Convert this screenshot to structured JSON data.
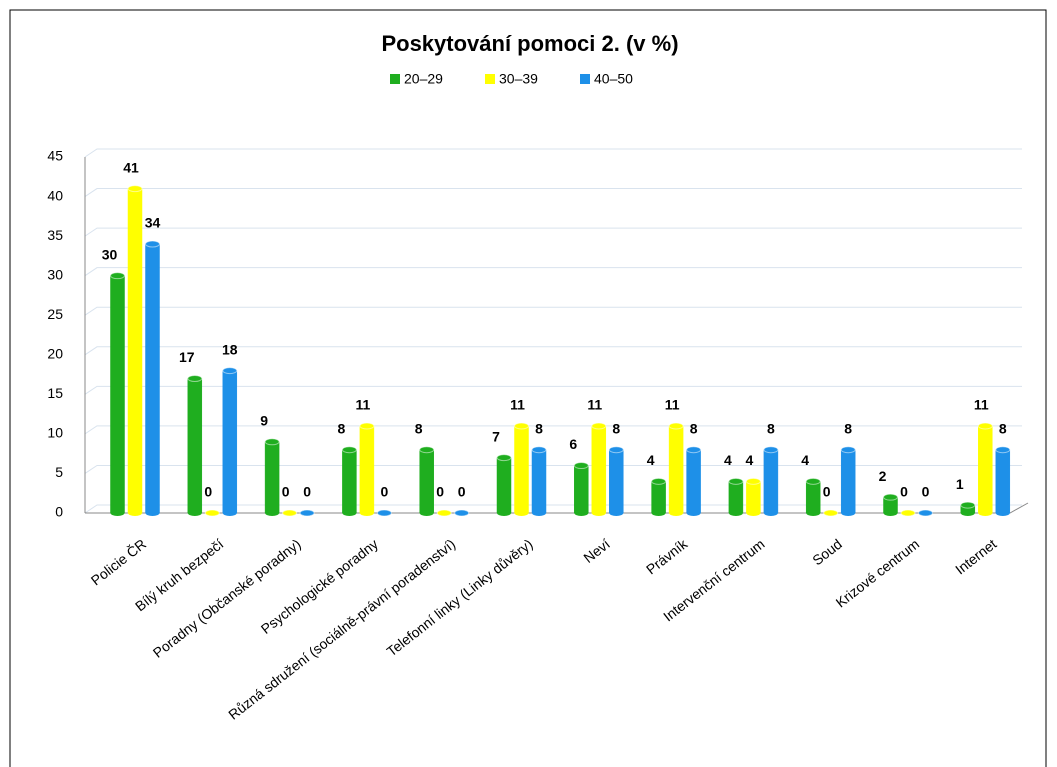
{
  "chart_data": {
    "type": "bar",
    "title": "Poskytování pomoci 2. (v %)",
    "categories": [
      "Policie ČR",
      "Bílý kruh bezpečí",
      "Poradny (Občanské poradny)",
      "Psychologické poradny",
      "Různá sdružení (sociálně-právní poradenství)",
      "Telefonní linky (Linky důvěry)",
      "Neví",
      "Právník",
      "Intervenční centrum",
      "Soud",
      "Krizové centrum",
      "Internet"
    ],
    "series": [
      {
        "name": "20–29",
        "color": "#1fae1f",
        "values": [
          30,
          17,
          9,
          8,
          8,
          7,
          6,
          4,
          4,
          4,
          2,
          1
        ]
      },
      {
        "name": "30–39",
        "color": "#ffff00",
        "values": [
          41,
          0,
          0,
          11,
          0,
          11,
          11,
          11,
          4,
          0,
          0,
          11
        ]
      },
      {
        "name": "40–50",
        "color": "#1e90e8",
        "values": [
          34,
          18,
          0,
          0,
          0,
          8,
          8,
          8,
          8,
          8,
          0,
          8
        ]
      }
    ],
    "ylim": [
      0,
      45
    ],
    "yticks": [
      0,
      5,
      10,
      15,
      20,
      25,
      30,
      35,
      40,
      45
    ],
    "grid": true,
    "legend": "top"
  }
}
